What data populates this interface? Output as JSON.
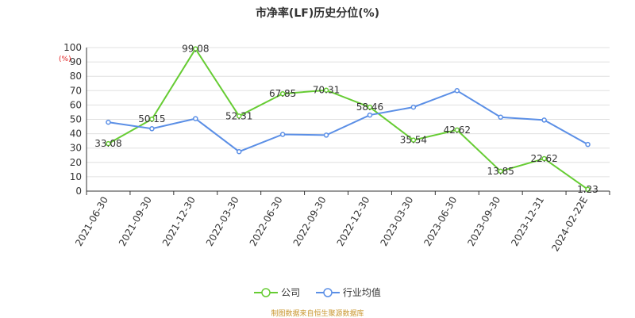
{
  "chart_data": {
    "type": "line",
    "title": "市净率(LF)历史分位(%)",
    "ylabel": "(%)",
    "ylim": [
      0,
      100
    ],
    "yticks": [
      0,
      10,
      20,
      30,
      40,
      50,
      60,
      70,
      80,
      90,
      100
    ],
    "categories": [
      "2021-06-30",
      "2021-09-30",
      "2021-12-30",
      "2022-03-30",
      "2022-06-30",
      "2022-09-30",
      "2022-12-30",
      "2023-03-30",
      "2023-06-30",
      "2023-09-30",
      "2023-12-31",
      "2024-02-22E"
    ],
    "series": [
      {
        "name": "公司",
        "color": "#66cc33",
        "labeled": true,
        "values": [
          33.08,
          50.15,
          99.08,
          52.31,
          67.85,
          70.31,
          58.46,
          35.54,
          42.62,
          13.85,
          22.62,
          1.23
        ]
      },
      {
        "name": "行业均值",
        "color": "#5b8fe6",
        "labeled": false,
        "values": [
          48.0,
          43.5,
          50.5,
          27.5,
          39.5,
          39.0,
          53.0,
          58.5,
          70.0,
          51.5,
          49.5,
          32.5
        ]
      }
    ],
    "grid": true,
    "legend_position": "bottom-center"
  },
  "source_note": "制图数据来自恒生聚源数据库"
}
